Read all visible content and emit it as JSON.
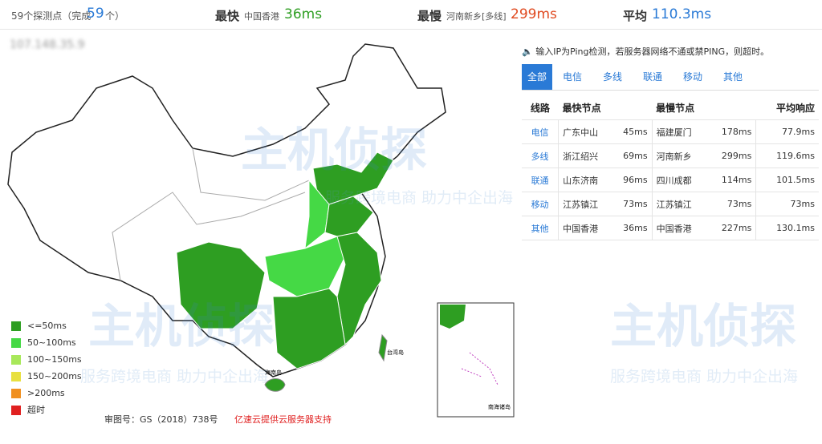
{
  "summary": {
    "points_prefix": "59个探测点（完成",
    "points_done": "59",
    "points_suffix": "个）",
    "fastest_label": "最快",
    "fastest_node": "中国香港",
    "fastest_value": "36ms",
    "slowest_label": "最慢",
    "slowest_node": "河南新乡[多线]",
    "slowest_value": "299ms",
    "avg_label": "平均",
    "avg_value": "110.3ms"
  },
  "target_ip": "107.148.35.9",
  "notice": "输入IP为Ping检测，若服务器网络不通或禁PING，则超时。",
  "tabs": [
    "全部",
    "电信",
    "多线",
    "联通",
    "移动",
    "其他"
  ],
  "table": {
    "header": [
      "线路",
      "最快节点",
      "最慢节点",
      "平均响应"
    ],
    "rows": [
      [
        "电信",
        "广东中山",
        "45ms",
        "福建厦门",
        "178ms",
        "77.9ms"
      ],
      [
        "多线",
        "浙江绍兴",
        "69ms",
        "河南新乡",
        "299ms",
        "119.6ms"
      ],
      [
        "联通",
        "山东济南",
        "96ms",
        "四川成都",
        "114ms",
        "101.5ms"
      ],
      [
        "移动",
        "江苏镇江",
        "73ms",
        "江苏镇江",
        "73ms",
        "73ms"
      ],
      [
        "其他",
        "中国香港",
        "36ms",
        "中国香港",
        "227ms",
        "130.1ms"
      ]
    ]
  },
  "legend": [
    {
      "label": "<=50ms",
      "color": "#2e9e22"
    },
    {
      "label": "50~100ms",
      "color": "#45d945"
    },
    {
      "label": "100~150ms",
      "color": "#a8e85a"
    },
    {
      "label": "150~200ms",
      "color": "#e8e040"
    },
    {
      "label": ">200ms",
      "color": "#f09020"
    },
    {
      "label": "超时",
      "color": "#e02020"
    }
  ],
  "map_labels": {
    "taiwan": "台湾岛",
    "hainan": "海南岛",
    "south_sea": "南海诸岛"
  },
  "footer": {
    "approval": "审图号：GS（2018）738号",
    "sponsor": "亿速云提供云服务器支持"
  },
  "watermark": {
    "logo": "主机侦探",
    "slogan": "服务跨境电商 助力中企出海"
  }
}
